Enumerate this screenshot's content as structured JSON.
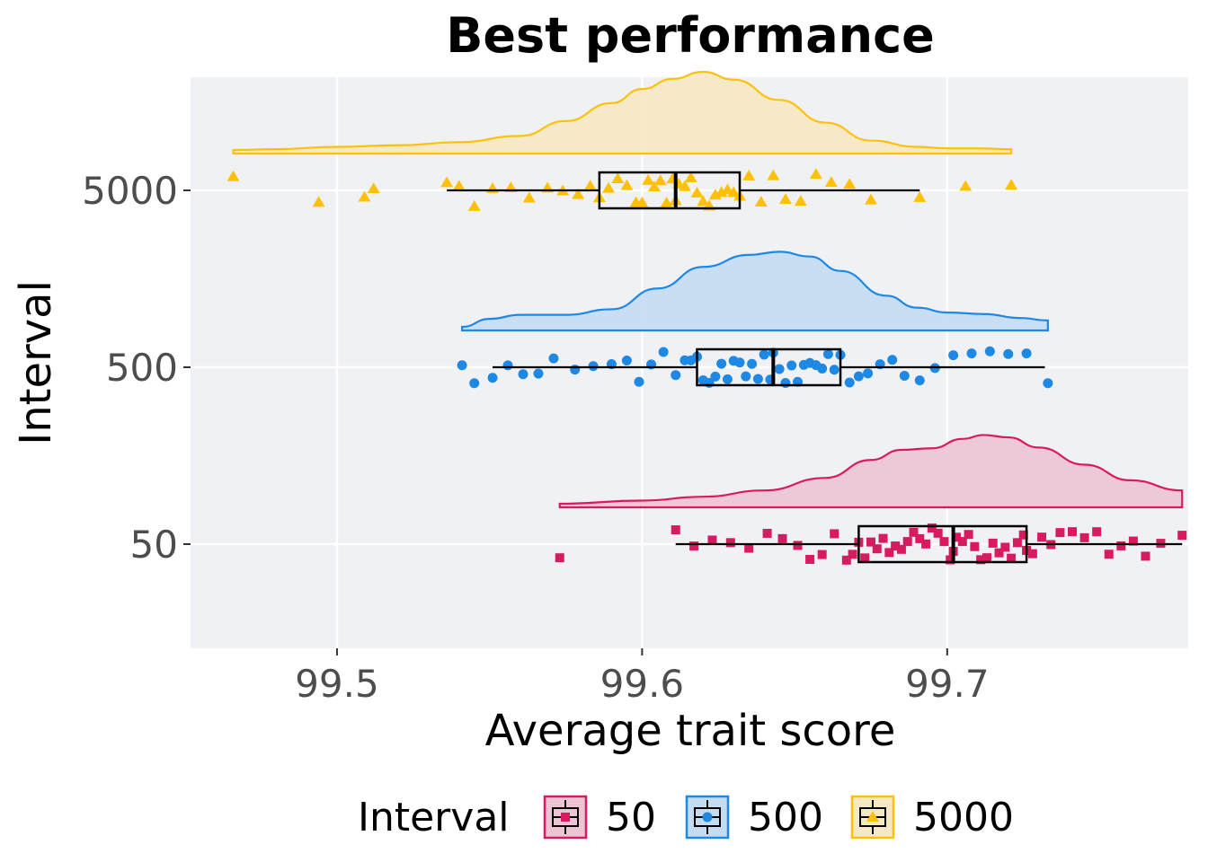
{
  "chart_data": {
    "type": "raincloud",
    "title": "Best performance",
    "xlabel": "Average trait score",
    "ylabel": "Interval",
    "xlim": [
      99.452,
      99.779
    ],
    "x_ticks": [
      99.5,
      99.6,
      99.7
    ],
    "x_tick_labels": [
      "99.5",
      "99.6",
      "99.7"
    ],
    "categories": [
      "50",
      "500",
      "5000"
    ],
    "grid": true,
    "legend": {
      "title": "Interval",
      "placement": "bottom"
    },
    "series": [
      {
        "name": "50",
        "color": "#d81b60",
        "fill": "#ecc4d4",
        "marker": "square",
        "box": {
          "min": 99.611,
          "q1": 99.671,
          "median": 99.702,
          "q3": 99.726,
          "max": 99.777
        },
        "density_x": [
          99.573,
          99.6,
          99.62,
          99.64,
          99.66,
          99.675,
          99.685,
          99.695,
          99.705,
          99.712,
          99.72,
          99.73,
          99.745,
          99.76,
          99.777
        ],
        "density_y": [
          0.0,
          0.04,
          0.09,
          0.17,
          0.33,
          0.56,
          0.69,
          0.71,
          0.83,
          0.88,
          0.85,
          0.72,
          0.5,
          0.3,
          0.17
        ],
        "points": [
          99.573,
          99.611,
          99.617,
          99.623,
          99.629,
          99.635,
          99.641,
          99.646,
          99.651,
          99.655,
          99.659,
          99.663,
          99.667,
          99.669,
          99.671,
          99.673,
          99.675,
          99.677,
          99.679,
          99.681,
          99.683,
          99.685,
          99.687,
          99.689,
          99.691,
          99.693,
          99.695,
          99.697,
          99.699,
          99.701,
          99.702,
          99.703,
          99.705,
          99.707,
          99.709,
          99.711,
          99.713,
          99.715,
          99.717,
          99.719,
          99.721,
          99.723,
          99.725,
          99.726,
          99.728,
          99.731,
          99.734,
          99.737,
          99.741,
          99.745,
          99.749,
          99.753,
          99.757,
          99.761,
          99.765,
          99.77,
          99.777
        ]
      },
      {
        "name": "500",
        "color": "#1e88e5",
        "fill": "#c4dcf2",
        "marker": "circle",
        "box": {
          "min": 99.551,
          "q1": 99.618,
          "median": 99.643,
          "q3": 99.665,
          "max": 99.732
        },
        "density_x": [
          99.541,
          99.55,
          99.56,
          99.575,
          99.59,
          99.605,
          99.62,
          99.635,
          99.645,
          99.655,
          99.665,
          99.68,
          99.69,
          99.7,
          99.712,
          99.724,
          99.733
        ],
        "density_y": [
          0.0,
          0.1,
          0.15,
          0.15,
          0.22,
          0.48,
          0.75,
          0.9,
          0.94,
          0.88,
          0.7,
          0.39,
          0.24,
          0.18,
          0.16,
          0.11,
          0.08
        ],
        "points": [
          99.541,
          99.545,
          99.551,
          99.556,
          99.561,
          99.566,
          99.571,
          99.578,
          99.584,
          99.59,
          99.595,
          99.599,
          99.603,
          99.607,
          99.611,
          99.614,
          99.616,
          99.618,
          99.62,
          99.622,
          99.624,
          99.626,
          99.628,
          99.63,
          99.632,
          99.634,
          99.636,
          99.638,
          99.64,
          99.642,
          99.643,
          99.645,
          99.647,
          99.649,
          99.651,
          99.653,
          99.655,
          99.657,
          99.659,
          99.661,
          99.663,
          99.665,
          99.668,
          99.671,
          99.674,
          99.678,
          99.682,
          99.686,
          99.691,
          99.696,
          99.702,
          99.708,
          99.714,
          99.72,
          99.726,
          99.733
        ]
      },
      {
        "name": "5000",
        "color": "#ffc107",
        "fill": "#f5e8c2",
        "marker": "triangle",
        "box": {
          "min": 99.536,
          "q1": 99.586,
          "median": 99.611,
          "q3": 99.632,
          "max": 99.691
        },
        "density_x": [
          99.466,
          99.48,
          99.5,
          99.52,
          99.54,
          99.56,
          99.575,
          99.59,
          99.6,
          99.61,
          99.62,
          99.63,
          99.645,
          99.66,
          99.675,
          99.69,
          99.7,
          99.71,
          99.721
        ],
        "density_y": [
          0.0,
          0.01,
          0.04,
          0.06,
          0.1,
          0.18,
          0.37,
          0.6,
          0.78,
          0.91,
          1.0,
          0.9,
          0.64,
          0.35,
          0.12,
          0.04,
          0.02,
          0.02,
          0.01
        ],
        "points": [
          99.466,
          99.494,
          99.509,
          99.512,
          99.536,
          99.54,
          99.545,
          99.551,
          99.557,
          99.563,
          99.569,
          99.574,
          99.579,
          99.583,
          99.586,
          99.589,
          99.592,
          99.595,
          99.598,
          99.6,
          99.602,
          99.604,
          99.606,
          99.608,
          99.61,
          99.611,
          99.612,
          99.614,
          99.616,
          99.618,
          99.62,
          99.622,
          99.624,
          99.626,
          99.628,
          99.63,
          99.632,
          99.635,
          99.639,
          99.643,
          99.647,
          99.652,
          99.657,
          99.662,
          99.668,
          99.675,
          99.691,
          99.706,
          99.721
        ]
      }
    ]
  }
}
